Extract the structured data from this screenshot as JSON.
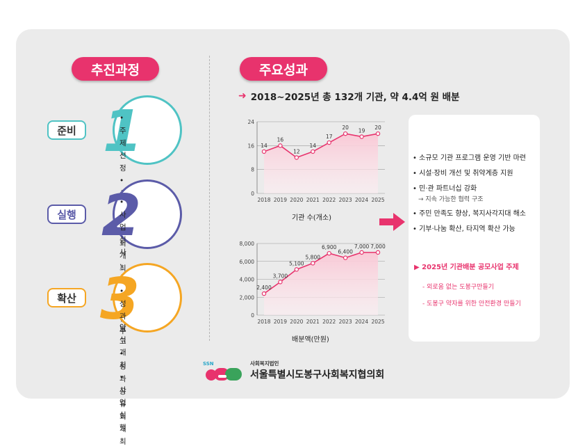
{
  "left_header": "추진과정",
  "right_header": "주요성과",
  "steps": [
    {
      "label": "준비",
      "number": "1",
      "color": "#4fc3c4",
      "items": [
        "• 주제선정",
        "• 사업설명회 개최",
        "• 공모접수"
      ]
    },
    {
      "label": "실행",
      "number": "2",
      "color": "#5b5ba8",
      "items": [
        "• 사업 심사·선정",
        "• 협약식 개최",
        "• 사업실행"
      ]
    },
    {
      "label": "확산",
      "number": "3",
      "color": "#f5a623",
      "items": [
        "• 성과보고",
        "• 성과공유회 개최"
      ]
    }
  ],
  "summary": "2018~2025년 총 132개 기관, 약 4.4억 원 배분",
  "colors": {
    "accent": "#e8336d",
    "line": "#e8336d",
    "fill": "#f9c9d6"
  },
  "chart_data": [
    {
      "type": "area",
      "x": [
        "2018",
        "2019",
        "2020",
        "2021",
        "2022",
        "2023",
        "2024",
        "2025"
      ],
      "values": [
        14,
        16,
        12,
        14,
        17,
        20,
        19,
        20
      ],
      "ylim": [
        0,
        24
      ],
      "yticks": [
        "0",
        "8",
        "16",
        "24"
      ],
      "xlabel": "기관 수(개소)",
      "value_labels": [
        "14",
        "16",
        "12",
        "14",
        "17",
        "20",
        "19",
        "20"
      ]
    },
    {
      "type": "area",
      "x": [
        "2018",
        "2019",
        "2020",
        "2021",
        "2022",
        "2023",
        "2024",
        "2025"
      ],
      "values": [
        2400,
        3700,
        5100,
        5800,
        6900,
        6400,
        7000,
        7000
      ],
      "ylim": [
        0,
        8000
      ],
      "yticks": [
        "0",
        "2,000",
        "4,000",
        "6,000",
        "8,000"
      ],
      "xlabel": "배분액(만원)",
      "value_labels": [
        "2,400",
        "3,700",
        "5,100",
        "5,800",
        "6,900",
        "6,400",
        "7,000",
        "7,000"
      ]
    }
  ],
  "results": {
    "items": [
      "• 소규모 기관 프로그램 운영 기반 마련",
      "• 시설·장비 개선 및 취약계층 지원",
      "• 민·관 파트너십 강화",
      "• 주민 만족도 향상, 복지사각지대 해소",
      "• 기부·나눔 확산, 타지역 확산 가능"
    ],
    "sub_note": "→ 지속 가능한 협력 구조",
    "theme_title": "▶ 2025년 기관배분 공모사업 주제",
    "theme_items": [
      "- 외로움 없는 도봉구만들기",
      "- 도봉구 약자를 위한 안전환경 만들기"
    ]
  },
  "logo": {
    "mark": "SSN",
    "org_type": "사회복지법인",
    "org_name": "서울특별시도봉구사회복지협의회"
  }
}
